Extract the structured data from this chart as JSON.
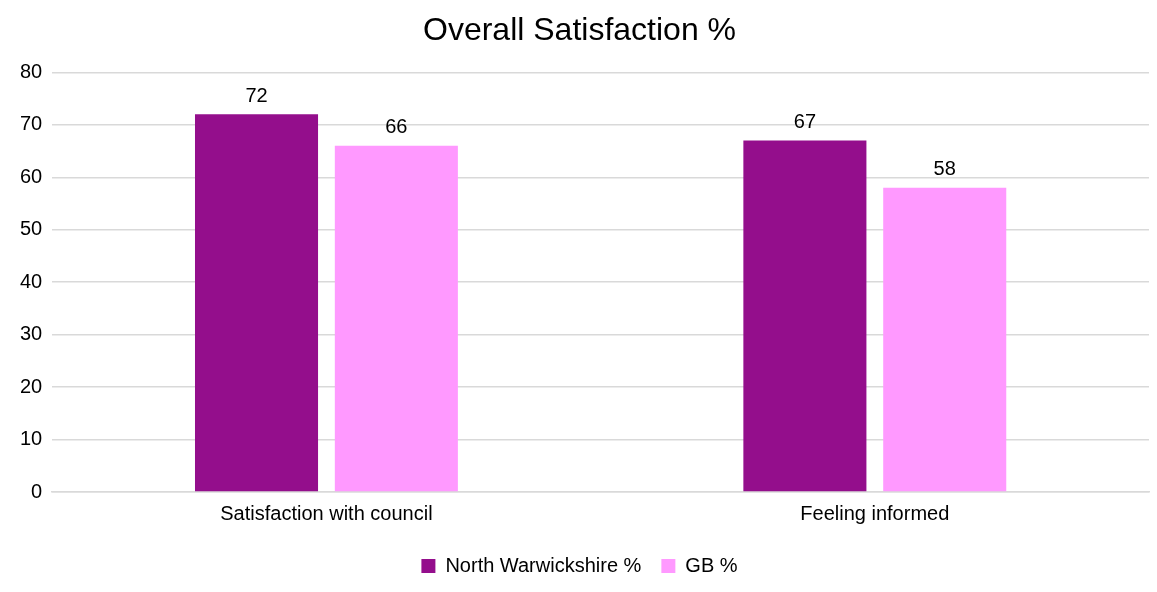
{
  "chart_data": {
    "type": "bar",
    "title": "Overall Satisfaction %",
    "categories": [
      "Satisfaction with council",
      "Feeling informed"
    ],
    "series": [
      {
        "name": "North Warwickshire %",
        "color": "#940e8c",
        "values": [
          72,
          67
        ]
      },
      {
        "name": "GB %",
        "color": "#ff99ff",
        "values": [
          66,
          58
        ]
      }
    ],
    "ylim": [
      0,
      80
    ],
    "yticks": [
      0,
      10,
      20,
      30,
      40,
      50,
      60,
      70,
      80
    ],
    "grid": "y",
    "legend": "bottom",
    "data_labels": true
  }
}
